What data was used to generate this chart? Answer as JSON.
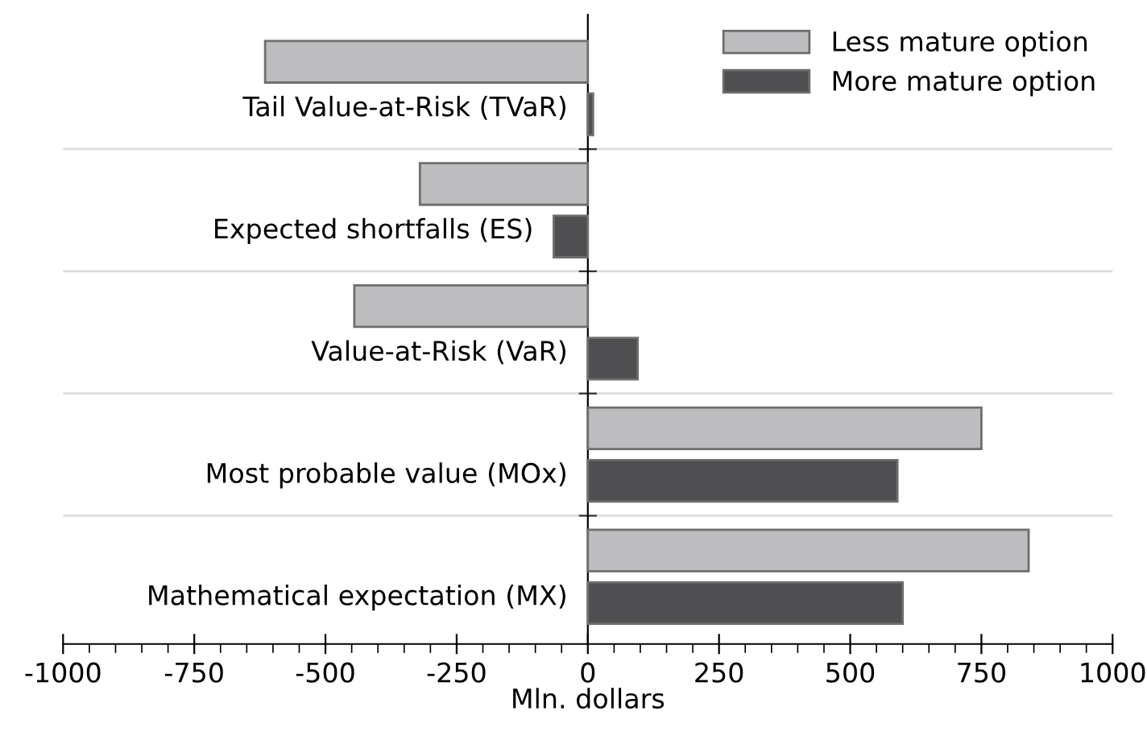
{
  "chart_data": {
    "type": "bar",
    "orientation": "horizontal",
    "categories": [
      "Tail Value-at-Risk (TVaR)",
      "Expected shortfalls (ES)",
      "Value-at-Risk (VaR)",
      "Most probable value (MOx)",
      "Mathematical expectation (MX)"
    ],
    "series": [
      {
        "name": "Less mature option",
        "color": "#bdbdbf",
        "values": [
          -615,
          -320,
          -445,
          750,
          840
        ]
      },
      {
        "name": "More mature option",
        "color": "#4f4f51",
        "values": [
          10,
          -65,
          95,
          590,
          600
        ]
      }
    ],
    "xlabel": "Mln. dollars",
    "xlim": [
      -1000,
      1000
    ],
    "xticks": [
      -1000,
      -750,
      -500,
      -250,
      0,
      250,
      500,
      750,
      1000
    ],
    "grid": "y",
    "legend": "top right"
  }
}
